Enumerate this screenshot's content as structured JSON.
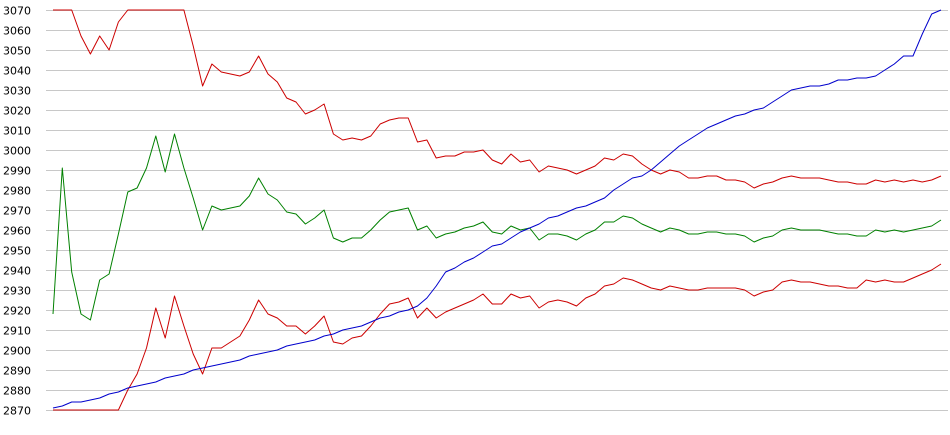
{
  "chart_data": {
    "type": "line",
    "title": "",
    "xlabel": "",
    "ylabel": "",
    "ylim": [
      2870,
      3070
    ],
    "y_ticks": [
      2870,
      2880,
      2890,
      2900,
      2910,
      2920,
      2930,
      2940,
      2950,
      2960,
      2970,
      2980,
      2990,
      3000,
      3010,
      3020,
      3030,
      3040,
      3050,
      3060,
      3070
    ],
    "y_tick_labels": [
      "2870",
      "2880",
      "2890",
      "2900",
      "2910",
      "2920",
      "2930",
      "2940",
      "2950",
      "2960",
      "2970",
      "2980",
      "2990",
      "3000",
      "3010",
      "3020",
      "3030",
      "3040",
      "3050",
      "3060",
      "3070"
    ],
    "grid": true,
    "legend": "none",
    "x": [
      0,
      1,
      2,
      3,
      4,
      5,
      6,
      7,
      8,
      9,
      10,
      11,
      12,
      13,
      14,
      15,
      16,
      17,
      18,
      19,
      20,
      21,
      22,
      23,
      24,
      25,
      26,
      27,
      28,
      29,
      30,
      31,
      32,
      33,
      34,
      35,
      36,
      37,
      38,
      39,
      40,
      41,
      42,
      43,
      44,
      45,
      46,
      47,
      48,
      49,
      50,
      51,
      52,
      53,
      54,
      55,
      56,
      57,
      58,
      59,
      60,
      61,
      62,
      63,
      64,
      65,
      66,
      67,
      68,
      69,
      70,
      71,
      72,
      73,
      74,
      75,
      76,
      77,
      78,
      79,
      80,
      81,
      82,
      83,
      84,
      85,
      86,
      87,
      88,
      89,
      90,
      91,
      92,
      93,
      94,
      95
    ],
    "series": [
      {
        "color": "#cc0000",
        "values": [
          3070,
          3070,
          3070,
          3057,
          3048,
          3057,
          3050,
          3064,
          3070,
          3070,
          3070,
          3070,
          3070,
          3070,
          3070,
          3052,
          3032,
          3043,
          3039,
          3038,
          3037,
          3039,
          3047,
          3038,
          3034,
          3026,
          3024,
          3018,
          3020,
          3023,
          3008,
          3005,
          3006,
          3005,
          3007,
          3013,
          3015,
          3016,
          3016,
          3004,
          3005,
          2996,
          2997,
          2997,
          2999,
          2999,
          3000,
          2995,
          2993,
          2998,
          2994,
          2995,
          2989,
          2992,
          2991,
          2990,
          2988,
          2990,
          2992,
          2996,
          2995,
          2998,
          2997,
          2993,
          2990,
          2988,
          2990,
          2989,
          2986,
          2986,
          2987,
          2987,
          2985,
          2985,
          2984,
          2981,
          2983,
          2984,
          2986,
          2987,
          2986,
          2986,
          2986,
          2985,
          2984,
          2984,
          2983,
          2983,
          2985,
          2984,
          2985,
          2984,
          2985,
          2984,
          2985,
          2987
        ]
      },
      {
        "color": "#cc0000",
        "values": [
          2870,
          2870,
          2870,
          2870,
          2870,
          2870,
          2870,
          2870,
          2880,
          2888,
          2901,
          2921,
          2906,
          2927,
          2912,
          2898,
          2888,
          2901,
          2901,
          2904,
          2907,
          2915,
          2925,
          2918,
          2916,
          2912,
          2912,
          2908,
          2912,
          2917,
          2904,
          2903,
          2906,
          2907,
          2912,
          2918,
          2923,
          2924,
          2926,
          2916,
          2921,
          2916,
          2919,
          2921,
          2923,
          2925,
          2928,
          2923,
          2923,
          2928,
          2926,
          2927,
          2921,
          2924,
          2925,
          2924,
          2922,
          2926,
          2928,
          2932,
          2933,
          2936,
          2935,
          2933,
          2931,
          2930,
          2932,
          2931,
          2930,
          2930,
          2931,
          2931,
          2931,
          2931,
          2930,
          2927,
          2929,
          2930,
          2934,
          2935,
          2934,
          2934,
          2933,
          2932,
          2932,
          2931,
          2931,
          2935,
          2934,
          2935,
          2934,
          2934,
          2936,
          2938,
          2940,
          2943
        ]
      },
      {
        "color": "#008000",
        "values": [
          2918,
          2991,
          2939,
          2918,
          2915,
          2935,
          2938,
          2958,
          2979,
          2981,
          2991,
          3007,
          2989,
          3008,
          2991,
          2976,
          2960,
          2972,
          2970,
          2971,
          2972,
          2977,
          2986,
          2978,
          2975,
          2969,
          2968,
          2963,
          2966,
          2970,
          2956,
          2954,
          2956,
          2956,
          2960,
          2965,
          2969,
          2970,
          2971,
          2960,
          2962,
          2956,
          2958,
          2959,
          2961,
          2962,
          2964,
          2959,
          2958,
          2962,
          2960,
          2961,
          2955,
          2958,
          2958,
          2957,
          2955,
          2958,
          2960,
          2964,
          2964,
          2967,
          2966,
          2963,
          2961,
          2959,
          2961,
          2960,
          2958,
          2958,
          2959,
          2959,
          2958,
          2958,
          2957,
          2954,
          2956,
          2957,
          2960,
          2961,
          2960,
          2960,
          2960,
          2959,
          2958,
          2958,
          2957,
          2957,
          2960,
          2959,
          2960,
          2959,
          2960,
          2961,
          2962,
          2965
        ]
      },
      {
        "color": "#0000cc",
        "values": [
          2871,
          2872,
          2874,
          2874,
          2875,
          2876,
          2878,
          2879,
          2881,
          2882,
          2883,
          2884,
          2886,
          2887,
          2888,
          2890,
          2891,
          2892,
          2893,
          2894,
          2895,
          2897,
          2898,
          2899,
          2900,
          2902,
          2903,
          2904,
          2905,
          2907,
          2908,
          2910,
          2911,
          2912,
          2914,
          2916,
          2917,
          2919,
          2920,
          2922,
          2926,
          2932,
          2939,
          2941,
          2944,
          2946,
          2949,
          2952,
          2953,
          2956,
          2959,
          2961,
          2963,
          2966,
          2967,
          2969,
          2971,
          2972,
          2974,
          2976,
          2980,
          2983,
          2986,
          2987,
          2990,
          2994,
          2998,
          3002,
          3005,
          3008,
          3011,
          3013,
          3015,
          3017,
          3018,
          3020,
          3021,
          3024,
          3027,
          3030,
          3031,
          3032,
          3032,
          3033,
          3035,
          3035,
          3036,
          3036,
          3037,
          3040,
          3043,
          3047,
          3047,
          3058,
          3068,
          3070
        ]
      }
    ]
  }
}
